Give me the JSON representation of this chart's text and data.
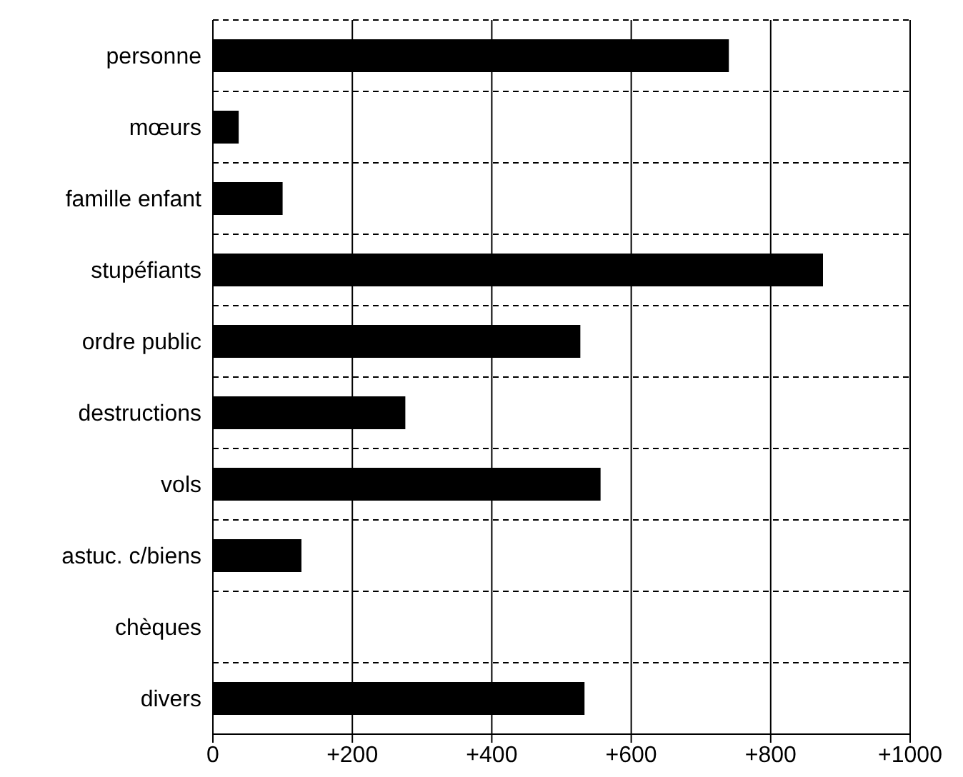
{
  "chart_data": {
    "type": "bar",
    "orientation": "horizontal",
    "categories": [
      "personne",
      "mœurs",
      "famille enfant",
      "stupéfiants",
      "ordre public",
      "destructions",
      "vols",
      "astuc. c/biens",
      "chèques",
      "divers"
    ],
    "values": [
      740,
      37,
      100,
      875,
      527,
      276,
      556,
      127,
      0,
      533
    ],
    "color": "#000000",
    "xlim": [
      0,
      1000
    ],
    "xticks": [
      0,
      {
        "value": 200,
        "label": "+200"
      },
      {
        "value": 400,
        "label": "+400"
      },
      {
        "value": 600,
        "label": "+600"
      },
      {
        "value": 800,
        "label": "+800"
      },
      {
        "value": 1000,
        "label": "+1000"
      }
    ],
    "grid": true
  }
}
